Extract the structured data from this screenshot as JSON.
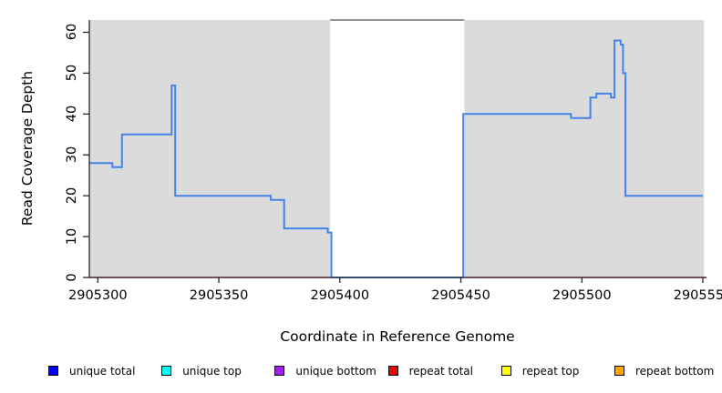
{
  "chart_data": {
    "type": "line",
    "subtype": "step-coverage",
    "title": "",
    "xlabel": "Coordinate in Reference Genome",
    "ylabel": "Read Coverage Depth",
    "xlim": [
      2905296.5,
      2905551.5
    ],
    "ylim": [
      0,
      63
    ],
    "x_ticks": [
      2905300,
      2905350,
      2905400,
      2905450,
      2905500,
      2905550
    ],
    "x_tick_labels": [
      "2905300",
      "2905350",
      "2905400",
      "2905450",
      "2905500",
      "2905550"
    ],
    "y_ticks": [
      0,
      10,
      20,
      30,
      40,
      50,
      60
    ],
    "y_tick_labels": [
      "0",
      "10",
      "20",
      "30",
      "40",
      "50",
      "60"
    ],
    "grid": false,
    "axis_color": "#2a2a2a",
    "shaded_regions": [
      {
        "name": "aligned-region-left",
        "x1": 2905296.5,
        "x2": 2905396.0,
        "color": "#dbdbdb"
      },
      {
        "name": "aligned-region-right",
        "x1": 2905451.5,
        "x2": 2905550.5,
        "color": "#dbdbdb"
      }
    ],
    "gap_outline": {
      "x1": 2905396.0,
      "x2": 2905451.5,
      "y": 63,
      "color": "#757575"
    },
    "series": [
      {
        "name": "repeat total",
        "line_color": "#e04358",
        "line_width": 1.4,
        "points": [
          [
            2905296.5,
            0
          ],
          [
            2905551.5,
            0
          ]
        ]
      },
      {
        "name": "unique total",
        "line_color": "#4484e8",
        "line_width": 2,
        "points": [
          [
            2905296.5,
            28
          ],
          [
            2905306,
            28
          ],
          [
            2905306,
            27
          ],
          [
            2905310,
            27
          ],
          [
            2905310,
            35
          ],
          [
            2905330.5,
            35
          ],
          [
            2905330.5,
            47
          ],
          [
            2905332,
            47
          ],
          [
            2905332,
            20
          ],
          [
            2905371.5,
            20
          ],
          [
            2905371.5,
            19
          ],
          [
            2905377,
            19
          ],
          [
            2905377,
            12
          ],
          [
            2905395,
            12
          ],
          [
            2905395,
            11
          ],
          [
            2905396.5,
            11
          ],
          [
            2905396.5,
            0
          ],
          [
            2905451,
            0
          ],
          [
            2905451,
            40
          ],
          [
            2905495.5,
            40
          ],
          [
            2905495.5,
            39
          ],
          [
            2905503.5,
            39
          ],
          [
            2905503.5,
            44
          ],
          [
            2905506,
            44
          ],
          [
            2905506,
            45
          ],
          [
            2905512,
            45
          ],
          [
            2905512,
            44
          ],
          [
            2905513.5,
            44
          ],
          [
            2905513.5,
            58
          ],
          [
            2905516,
            58
          ],
          [
            2905516,
            57
          ],
          [
            2905517,
            57
          ],
          [
            2905517,
            50
          ],
          [
            2905518,
            50
          ],
          [
            2905518,
            20
          ],
          [
            2905550,
            20
          ]
        ]
      }
    ],
    "legend": {
      "position": "bottom",
      "entries": [
        {
          "label": "unique total",
          "swatch_color": "#0000ee"
        },
        {
          "label": "unique top",
          "swatch_color": "#00ffff"
        },
        {
          "label": "unique bottom",
          "swatch_color": "#a020f0"
        },
        {
          "label": "repeat total",
          "swatch_color": "#f00000"
        },
        {
          "label": "repeat top",
          "swatch_color": "#ffff00"
        },
        {
          "label": "repeat bottom",
          "swatch_color": "#ffa500"
        }
      ]
    }
  }
}
